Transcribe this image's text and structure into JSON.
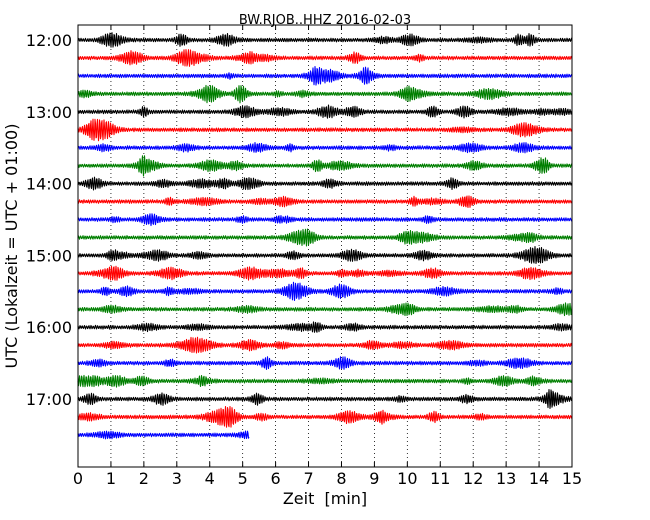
{
  "chart_data": {
    "type": "line",
    "title": "BW.RJOB..HHZ 2016-02-03",
    "xlabel": "Zeit  [min]",
    "ylabel": "UTC (Lokalzeit = UTC + 01:00)",
    "xlim": [
      0,
      15
    ],
    "x_ticks": [
      0,
      1,
      2,
      3,
      4,
      5,
      6,
      7,
      8,
      9,
      10,
      11,
      12,
      13,
      14,
      15
    ],
    "y_tick_labels": [
      "12:00",
      "13:00",
      "14:00",
      "15:00",
      "16:00",
      "17:00"
    ],
    "grid": "vertical dotted lines at each minute",
    "colors": [
      "#000000",
      "#ff0000",
      "#0000ff",
      "#007f00"
    ],
    "rows": [
      {
        "start": "12:00",
        "color": "#000000",
        "duration_min": 15
      },
      {
        "start": "12:15",
        "color": "#ff0000",
        "duration_min": 15
      },
      {
        "start": "12:30",
        "color": "#0000ff",
        "duration_min": 15
      },
      {
        "start": "12:45",
        "color": "#007f00",
        "duration_min": 15
      },
      {
        "start": "13:00",
        "color": "#000000",
        "duration_min": 15
      },
      {
        "start": "13:15",
        "color": "#ff0000",
        "duration_min": 15
      },
      {
        "start": "13:30",
        "color": "#0000ff",
        "duration_min": 15
      },
      {
        "start": "13:45",
        "color": "#007f00",
        "duration_min": 15
      },
      {
        "start": "14:00",
        "color": "#000000",
        "duration_min": 15
      },
      {
        "start": "14:15",
        "color": "#ff0000",
        "duration_min": 15
      },
      {
        "start": "14:30",
        "color": "#0000ff",
        "duration_min": 15
      },
      {
        "start": "14:45",
        "color": "#007f00",
        "duration_min": 15
      },
      {
        "start": "15:00",
        "color": "#000000",
        "duration_min": 15
      },
      {
        "start": "15:15",
        "color": "#ff0000",
        "duration_min": 15
      },
      {
        "start": "15:30",
        "color": "#0000ff",
        "duration_min": 15
      },
      {
        "start": "15:45",
        "color": "#007f00",
        "duration_min": 15
      },
      {
        "start": "16:00",
        "color": "#000000",
        "duration_min": 15
      },
      {
        "start": "16:15",
        "color": "#ff0000",
        "duration_min": 15
      },
      {
        "start": "16:30",
        "color": "#0000ff",
        "duration_min": 15
      },
      {
        "start": "16:45",
        "color": "#007f00",
        "duration_min": 15
      },
      {
        "start": "17:00",
        "color": "#000000",
        "duration_min": 15
      },
      {
        "start": "17:15",
        "color": "#ff0000",
        "duration_min": 15
      },
      {
        "start": "17:30",
        "color": "#0000ff",
        "duration_min": 5.2
      }
    ]
  }
}
